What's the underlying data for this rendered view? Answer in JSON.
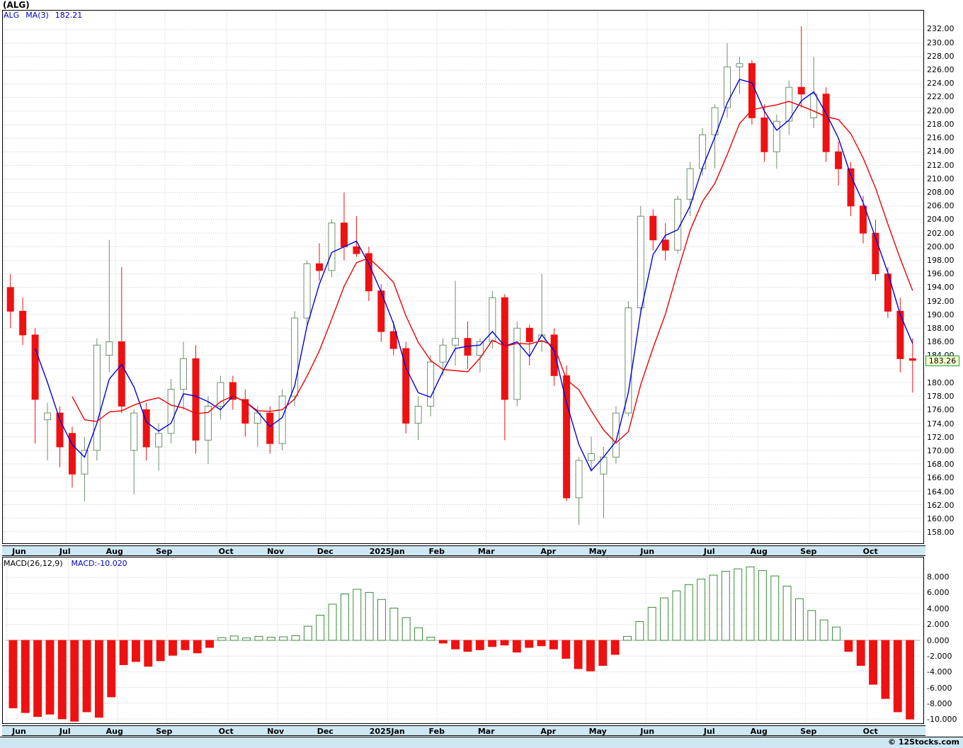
{
  "header": {
    "title": "(ALG)"
  },
  "main_panel": {
    "legend": {
      "symbol": "ALG",
      "ma_label": "MA(3)",
      "ma_value": "182.21"
    }
  },
  "macd_panel": {
    "params_label": "MACD(26,12,9)",
    "value_label": "MACD:-10.020"
  },
  "footer": {
    "credit": "© 12Stocks.com"
  },
  "colors": {
    "accent_blue": "#0000cc",
    "ma_fast_blue": "#0000dd",
    "ma_slow_red": "#ee0000",
    "candle_up_outline": "#6f8f6f",
    "candle_down": "#ee1111",
    "macd_pos_outline": "#3c8a3c",
    "macd_neg_fill": "#ee1111",
    "grid": "#c8c8c8",
    "zero_line": "#aaaaaa",
    "month_bar_bg": "#cde7f3",
    "tag_border": "#00a550",
    "tag_bg": "#ffffcf"
  },
  "chart_data": {
    "type": "candlestick",
    "symbol": "ALG",
    "timeframe": "weekly",
    "last_price": 183.26,
    "last_price_label": "183.26",
    "ma3_last": 182.21,
    "macd_last": -10.02,
    "price_axis": {
      "min": 156.3,
      "max": 234.8,
      "tick_min": 158,
      "tick_max": 232,
      "tick_step": 2,
      "hidden_tick": 182
    },
    "macd_axis": {
      "min": -10.55,
      "max": 10.55,
      "ticks": [
        8,
        6,
        4,
        2,
        0,
        -2,
        -4,
        -6,
        -8,
        -10
      ]
    },
    "month_labels": [
      {
        "week": 0,
        "label": "Jun"
      },
      {
        "week": 5,
        "label": "Jul"
      },
      {
        "week": 9,
        "label": "Aug"
      },
      {
        "week": 13,
        "label": "Sep"
      },
      {
        "week": 18,
        "label": "Oct"
      },
      {
        "week": 22,
        "label": "Nov"
      },
      {
        "week": 26,
        "label": "Dec"
      },
      {
        "week": 31,
        "label": "2025Jan"
      },
      {
        "week": 35,
        "label": "Feb"
      },
      {
        "week": 39,
        "label": "Mar"
      },
      {
        "week": 44,
        "label": "Apr"
      },
      {
        "week": 48,
        "label": "May"
      },
      {
        "week": 52,
        "label": "Jun"
      },
      {
        "week": 57,
        "label": "Jul"
      },
      {
        "week": 61,
        "label": "Aug"
      },
      {
        "week": 65,
        "label": "Sep"
      },
      {
        "week": 70,
        "label": "Oct"
      }
    ],
    "ma_overlays": [
      {
        "period": 3,
        "color_key": "ma_fast_blue"
      },
      {
        "period": 6,
        "color_key": "ma_slow_red"
      }
    ],
    "candles": [
      [
        194,
        196,
        188,
        190.5
      ],
      [
        190.5,
        192.5,
        185.5,
        187
      ],
      [
        187,
        188,
        171,
        177.5
      ],
      [
        174.5,
        177,
        168.5,
        175.5
      ],
      [
        175.5,
        176.5,
        167.5,
        170.5
      ],
      [
        172.5,
        173.5,
        164.5,
        166.5
      ],
      [
        166.5,
        172,
        162.5,
        170
      ],
      [
        170,
        186.5,
        168.5,
        185.5
      ],
      [
        184,
        201,
        181.5,
        186
      ],
      [
        186,
        197,
        175.5,
        176.5
      ],
      [
        170,
        176,
        163.5,
        175.5
      ],
      [
        176,
        177,
        168.5,
        170.5
      ],
      [
        170.5,
        174,
        167,
        172.5
      ],
      [
        172.5,
        180.5,
        171,
        179
      ],
      [
        179,
        186,
        176,
        183.5
      ],
      [
        183.5,
        185.5,
        169.5,
        171.5
      ],
      [
        171.5,
        178,
        168,
        176.5
      ],
      [
        176.5,
        181,
        174.5,
        180
      ],
      [
        180,
        181,
        176,
        177.5
      ],
      [
        177.5,
        179,
        172,
        174
      ],
      [
        174,
        176.5,
        170.5,
        175.5
      ],
      [
        175.5,
        176.5,
        169.5,
        171
      ],
      [
        171,
        179,
        170,
        178
      ],
      [
        178,
        190.5,
        176.5,
        189.5
      ],
      [
        189.5,
        198,
        188,
        197.5
      ],
      [
        197.5,
        200.5,
        195,
        196.5
      ],
      [
        196.5,
        204,
        195.5,
        203.5
      ],
      [
        203.5,
        208,
        198,
        200
      ],
      [
        200,
        204.5,
        198.5,
        199
      ],
      [
        199,
        200,
        192,
        193.5
      ],
      [
        193.5,
        194.5,
        186,
        187.5
      ],
      [
        187.5,
        189,
        184,
        185
      ],
      [
        185,
        186,
        172.5,
        174
      ],
      [
        174,
        178,
        171.5,
        176.5
      ],
      [
        176.5,
        184,
        175,
        183
      ],
      [
        183,
        186.5,
        181,
        185.5
      ],
      [
        185.5,
        195,
        182.5,
        186.5
      ],
      [
        186.5,
        189,
        182,
        184
      ],
      [
        184,
        186.5,
        181.5,
        186
      ],
      [
        186,
        193.5,
        185,
        192.5
      ],
      [
        192.5,
        193,
        171.5,
        177.5
      ],
      [
        177.5,
        189,
        176.5,
        188
      ],
      [
        188,
        188.5,
        182.5,
        186
      ],
      [
        186,
        196,
        184.5,
        187
      ],
      [
        187,
        188,
        179.5,
        181
      ],
      [
        181,
        182.5,
        162.5,
        163
      ],
      [
        163,
        169,
        159,
        168.5
      ],
      [
        168.5,
        172,
        167,
        169.5
      ],
      [
        166.5,
        170.5,
        160,
        169
      ],
      [
        169,
        176.5,
        168,
        175.5
      ],
      [
        175.5,
        192,
        175,
        191
      ],
      [
        191,
        206,
        190,
        204.5
      ],
      [
        204.5,
        205.5,
        199.5,
        201
      ],
      [
        201,
        203.5,
        198,
        199.5
      ],
      [
        199.5,
        207.5,
        199,
        207
      ],
      [
        207,
        212.5,
        204.5,
        211.5
      ],
      [
        211.5,
        217.5,
        210.5,
        216.5
      ],
      [
        216.5,
        221,
        211.5,
        220.5
      ],
      [
        220.5,
        230,
        219,
        226.5
      ],
      [
        226.5,
        228,
        222.5,
        227
      ],
      [
        227,
        227.5,
        218,
        219
      ],
      [
        219,
        221,
        212.5,
        214
      ],
      [
        214,
        219.5,
        211.5,
        218.5
      ],
      [
        218.5,
        224.5,
        216.5,
        223.5
      ],
      [
        223.5,
        232.5,
        220.5,
        222.5
      ],
      [
        219,
        228,
        217.5,
        222.5
      ],
      [
        222.5,
        223.5,
        212.5,
        214
      ],
      [
        214,
        215.5,
        209,
        211.5
      ],
      [
        211.5,
        212.5,
        204.5,
        206
      ],
      [
        206,
        207.5,
        200.5,
        202
      ],
      [
        202,
        204,
        195,
        196
      ],
      [
        196,
        197,
        189.5,
        190.5
      ],
      [
        190.5,
        192.5,
        181.5,
        183.5
      ],
      [
        183.5,
        186.5,
        178.5,
        183.26
      ]
    ],
    "macd_histogram": [
      -8.6,
      -9.2,
      -9.7,
      -9.4,
      -10.0,
      -10.3,
      -9.1,
      -9.8,
      -7.2,
      -3.1,
      -2.7,
      -3.3,
      -2.6,
      -1.9,
      -1.2,
      -1.6,
      -0.9,
      0.35,
      0.55,
      0.3,
      0.5,
      0.4,
      0.45,
      0.6,
      1.8,
      3.2,
      4.6,
      5.9,
      6.5,
      6.1,
      5.2,
      4.1,
      2.9,
      1.6,
      0.4,
      -0.35,
      -1.1,
      -1.4,
      -1.2,
      -0.8,
      -0.6,
      -1.5,
      -0.9,
      -0.7,
      -1.1,
      -2.3,
      -3.6,
      -3.9,
      -3.2,
      -1.8,
      0.5,
      2.4,
      4.2,
      5.4,
      6.3,
      7.1,
      7.8,
      8.3,
      8.8,
      9.1,
      9.35,
      8.9,
      8.2,
      6.9,
      5.3,
      3.8,
      2.6,
      1.7,
      -1.4,
      -3.2,
      -5.6,
      -7.4,
      -9.1,
      -10.02
    ]
  }
}
